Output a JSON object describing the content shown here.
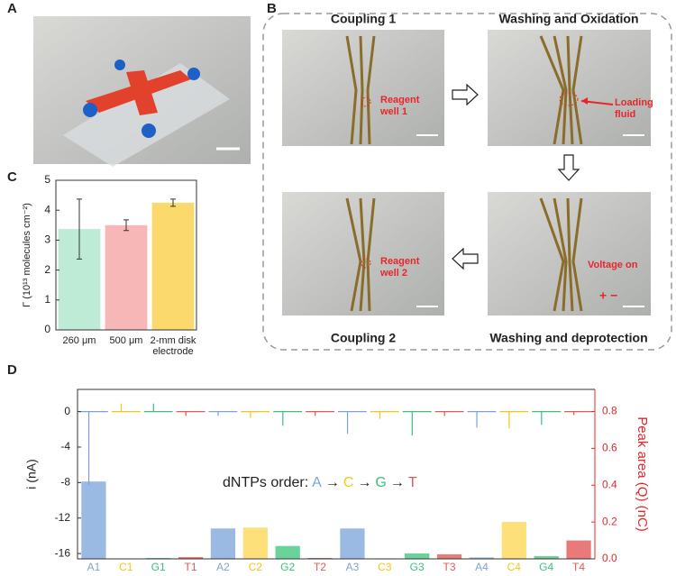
{
  "panels": {
    "a": "A",
    "b": "B",
    "c": "C",
    "d": "D"
  },
  "steps": {
    "coupling1": "Coupling 1",
    "washing_oxidation": "Washing and Oxidation",
    "coupling2": "Coupling 2",
    "washing_deprotection": "Washing and deprotection"
  },
  "annotations": {
    "reagent_well_1": "Reagent well 1",
    "loading_fluid": "Loading fluid",
    "reagent_well_2": "Reagent well 2",
    "voltage_on": "Voltage on"
  },
  "chart_data": [
    {
      "type": "bar",
      "ylabel": "Γ (10¹³ molecules cm⁻²)",
      "categories": [
        "260 μm",
        "500 μm",
        "2-mm disk electrode"
      ],
      "values": [
        3.37,
        3.5,
        4.25
      ],
      "errors": [
        1.0,
        0.18,
        0.12
      ],
      "colors": [
        "#bdebd5",
        "#f8b7b7",
        "#fcd96c"
      ],
      "ylim": [
        0,
        5
      ],
      "yticks": [
        0,
        1,
        2,
        3,
        4,
        5
      ]
    },
    {
      "type": "bar_trace",
      "ylabel": "i (nA)",
      "y2label": "Peak area (Q) (nC)",
      "y2_color": "#e8262a",
      "annotation": [
        "dNTPs order:",
        "A",
        "→",
        "C",
        "→",
        "G",
        "→",
        "T"
      ],
      "annotation_colors": [
        "#222222",
        "#7fa3d6",
        "#222222",
        "#f5c518",
        "#222222",
        "#3cbf7f",
        "#222222",
        "#e05a5a"
      ],
      "categories": [
        "A1",
        "C1",
        "G1",
        "T1",
        "A2",
        "C2",
        "G2",
        "T2",
        "A3",
        "C3",
        "G3",
        "T3",
        "A4",
        "C4",
        "G4",
        "T4"
      ],
      "series": [
        {
          "axis": "y",
          "values": [
            -8.3,
            0.9,
            0.9,
            -0.5,
            -0.5,
            -0.7,
            -1.6,
            -0.5,
            -2.5,
            -0.8,
            -2.7,
            -0.5,
            -1.8,
            -1.9,
            -1.5,
            -0.4
          ],
          "colors": [
            "#7fa3d6",
            "#f5c518",
            "#3cbf7f",
            "#e05a5a",
            "#7fa3d6",
            "#f5c518",
            "#3cbf7f",
            "#e05a5a",
            "#7fa3d6",
            "#f5c518",
            "#3cbf7f",
            "#e05a5a",
            "#7fa3d6",
            "#f5c518",
            "#3cbf7f",
            "#e05a5a"
          ]
        },
        {
          "axis": "y2",
          "values": [
            0.42,
            0,
            0.005,
            0.01,
            0.165,
            0.17,
            0.07,
            0.005,
            0.165,
            0.003,
            0.03,
            0.025,
            0.008,
            0.2,
            0.015,
            0.1
          ],
          "colors": [
            "#9ab9e3",
            "#fde07a",
            "#6ad39c",
            "#e87a7a",
            "#9ab9e3",
            "#fde07a",
            "#6ad39c",
            "#e87a7a",
            "#9ab9e3",
            "#fde07a",
            "#6ad39c",
            "#e87a7a",
            "#9ab9e3",
            "#fde07a",
            "#6ad39c",
            "#e87a7a"
          ]
        }
      ],
      "ylim": [
        -16.6,
        2.5
      ],
      "yticks": [
        0,
        -4,
        -8,
        -12,
        -16
      ],
      "y2lim": [
        0,
        0.92
      ],
      "y2ticks": [
        {
          "value": 0,
          "label": "0.0"
        },
        {
          "value": 0.2,
          "label": "0.2"
        },
        {
          "value": 0.4,
          "label": "0.4"
        },
        {
          "value": 0.6,
          "label": "0.6"
        },
        {
          "value": 0.8,
          "label": "0.8"
        }
      ]
    }
  ]
}
